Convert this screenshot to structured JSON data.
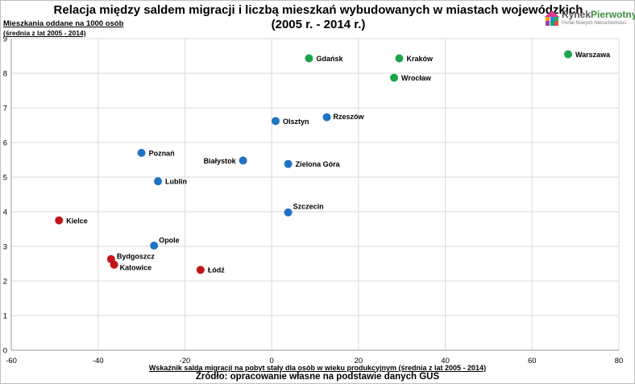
{
  "title_line1": "Relacja między saldem migracji i liczbą mieszkań wybudowanych w miastach wojewódzkich",
  "title_line2": "(2005 r. - 2014 r.)",
  "ylabel_line1": "Mieszkania oddane na 1000 osób",
  "ylabel_line2": "(średnia z lat 2005 - 2014)",
  "xlabel": "Wskaźnik salda migracji na pobyt stały dla osób w wieku produkcyjnym (średnia z lat 2005 - 2014)",
  "source": "Źródło: opracowanie własne na podstawie danych GUS",
  "logo": {
    "name_part1": "Rynek",
    "name_part2": "Pierwotny",
    "tagline": "Portal Nowych Nieruchomości"
  },
  "colors": {
    "green": "#1aa54b",
    "blue": "#1f73c4",
    "red": "#c41418",
    "grid": "#d9d9d9"
  },
  "chart_data": {
    "type": "scatter",
    "xlim": [
      -60,
      80
    ],
    "ylim": [
      0,
      9
    ],
    "x_ticks": [
      -60,
      -40,
      -20,
      0,
      20,
      40,
      60,
      80
    ],
    "y_ticks": [
      0,
      1,
      2,
      3,
      4,
      5,
      6,
      7,
      8,
      9
    ],
    "grid": true,
    "points": [
      {
        "label": "Warszawa",
        "x": 68.3,
        "y": 8.55,
        "color": "green"
      },
      {
        "label": "Gdańsk",
        "x": 8.6,
        "y": 8.43,
        "color": "green"
      },
      {
        "label": "Kraków",
        "x": 29.4,
        "y": 8.43,
        "color": "green"
      },
      {
        "label": "Wrocław",
        "x": 28.2,
        "y": 7.87,
        "color": "green"
      },
      {
        "label": "Rzeszów",
        "x": 12.7,
        "y": 6.73,
        "color": "blue"
      },
      {
        "label": "Olsztyn",
        "x": 0.9,
        "y": 6.62,
        "color": "blue"
      },
      {
        "label": "Poznań",
        "x": -30.0,
        "y": 5.7,
        "color": "blue"
      },
      {
        "label": "Białystok",
        "x": -6.6,
        "y": 5.48,
        "color": "blue"
      },
      {
        "label": "Zielona Góra",
        "x": 3.8,
        "y": 5.38,
        "color": "blue"
      },
      {
        "label": "Lublin",
        "x": -26.2,
        "y": 4.88,
        "color": "blue"
      },
      {
        "label": "Szczecin",
        "x": 3.8,
        "y": 3.98,
        "color": "blue"
      },
      {
        "label": "Opole",
        "x": -27.1,
        "y": 3.02,
        "color": "blue"
      },
      {
        "label": "Kielce",
        "x": -49.0,
        "y": 3.75,
        "color": "red"
      },
      {
        "label": "Bydgoszcz",
        "x": -37.0,
        "y": 2.63,
        "color": "red"
      },
      {
        "label": "Katowice",
        "x": -36.3,
        "y": 2.47,
        "color": "red"
      },
      {
        "label": "Łódź",
        "x": -16.4,
        "y": 2.32,
        "color": "red"
      }
    ]
  }
}
